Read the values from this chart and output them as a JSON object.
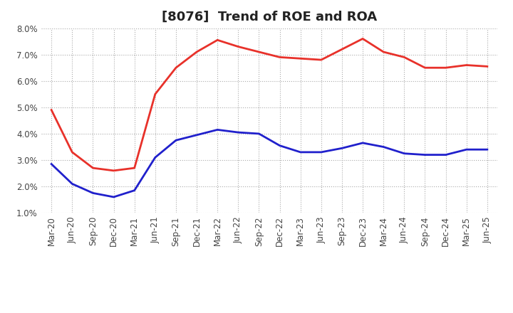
{
  "title": "[8076]  Trend of ROE and ROA",
  "x_labels": [
    "Mar-20",
    "Jun-20",
    "Sep-20",
    "Dec-20",
    "Mar-21",
    "Jun-21",
    "Sep-21",
    "Dec-21",
    "Mar-22",
    "Jun-22",
    "Sep-22",
    "Dec-22",
    "Mar-23",
    "Jun-23",
    "Sep-23",
    "Dec-23",
    "Mar-24",
    "Jun-24",
    "Sep-24",
    "Dec-24",
    "Mar-25",
    "Jun-25"
  ],
  "roe": [
    4.9,
    3.3,
    2.7,
    2.6,
    2.7,
    5.5,
    6.5,
    7.1,
    7.55,
    7.3,
    7.1,
    6.9,
    6.85,
    6.8,
    7.2,
    7.6,
    7.1,
    6.9,
    6.5,
    6.5,
    6.6,
    6.55
  ],
  "roa": [
    2.85,
    2.1,
    1.75,
    1.6,
    1.85,
    3.1,
    3.75,
    3.95,
    4.15,
    4.05,
    4.0,
    3.55,
    3.3,
    3.3,
    3.45,
    3.65,
    3.5,
    3.25,
    3.2,
    3.2,
    3.4,
    3.4
  ],
  "roe_color": "#e8312a",
  "roa_color": "#2020cc",
  "background_color": "#ffffff",
  "plot_bg_color": "#ffffff",
  "grid_color": "#aaaaaa",
  "ylim": [
    1.0,
    8.0
  ],
  "yticks": [
    1.0,
    2.0,
    3.0,
    4.0,
    5.0,
    6.0,
    7.0,
    8.0
  ],
  "title_fontsize": 13,
  "legend_fontsize": 10,
  "tick_fontsize": 8.5,
  "line_width": 2.0
}
